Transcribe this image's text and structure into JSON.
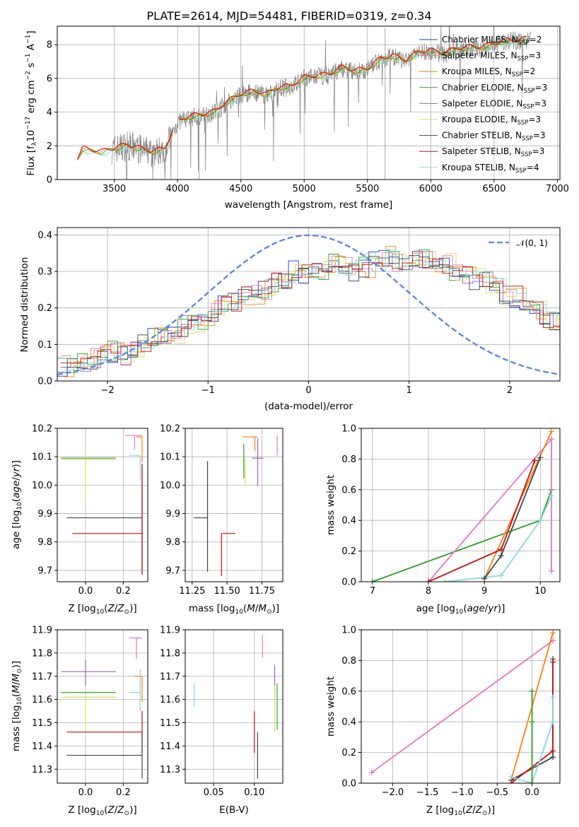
{
  "figure": {
    "title": "PLATE=2614, MJD=54481, FIBERID=0319, z=0.34"
  },
  "colors": {
    "Chabrier MILES": "#1f3fb4",
    "Salpeter MILES": "#e377c2",
    "Kroupa MILES": "#ff7f0e",
    "Chabrier ELODIE": "#2ca02c",
    "Salpeter ELODIE": "#9467bd",
    "Kroupa ELODIE": "#dbdb5a",
    "Chabrier STELIB": "#444444",
    "Salpeter STELIB": "#c41010",
    "Kroupa STELIB": "#8ad8e0",
    "spectrum": "#808080",
    "normal": "#5b84d9",
    "grid": "#b0b0b0"
  },
  "chart_data": [
    {
      "type": "line",
      "panel": "spectrum",
      "xlabel": "wavelength [Angstrom, rest frame]",
      "ylabel": "Flux [f_λ 10^-17 erg cm^-2 s^-1 A^-1]",
      "xlim": [
        3050,
        7020
      ],
      "ylim": [
        0,
        9.1
      ],
      "xticks": [
        3500,
        4000,
        4500,
        5000,
        5500,
        6000,
        6500,
        7000
      ],
      "yticks": [
        0,
        2,
        4,
        6,
        8
      ],
      "grid": true,
      "legend_position": "top-right",
      "legend": [
        {
          "label": "Chabrier MILES, N",
          "sub": "SSP",
          "suffix": "=2",
          "key": "Chabrier MILES"
        },
        {
          "label": "Salpeter MILES, N",
          "sub": "SSP",
          "suffix": "=3",
          "key": "Salpeter MILES"
        },
        {
          "label": "Kroupa MILES, N",
          "sub": "SSP",
          "suffix": "=2",
          "key": "Kroupa MILES"
        },
        {
          "label": "Chabrier ELODIE, N",
          "sub": "SSP",
          "suffix": "=3",
          "key": "Chabrier ELODIE"
        },
        {
          "label": "Salpeter ELODIE, N",
          "sub": "SSP",
          "suffix": "=3",
          "key": "Salpeter ELODIE"
        },
        {
          "label": "Kroupa ELODIE, N",
          "sub": "SSP",
          "suffix": "=3",
          "key": "Kroupa ELODIE"
        },
        {
          "label": "Chabrier STELIB, N",
          "sub": "SSP",
          "suffix": "=3",
          "key": "Chabrier STELIB"
        },
        {
          "label": "Salpeter STELIB, N",
          "sub": "SSP",
          "suffix": "=3",
          "key": "Salpeter STELIB"
        },
        {
          "label": "Kroupa STELIB, N",
          "sub": "SSP",
          "suffix": "=4",
          "key": "Kroupa STELIB"
        }
      ],
      "model_continuum": [
        [
          3210,
          1.2
        ],
        [
          3250,
          1.8
        ],
        [
          3300,
          1.7
        ],
        [
          3400,
          1.6
        ],
        [
          3500,
          1.8
        ],
        [
          3600,
          2.0
        ],
        [
          3700,
          1.8
        ],
        [
          3800,
          1.6
        ],
        [
          3900,
          1.8
        ],
        [
          4000,
          3.4
        ],
        [
          4100,
          3.7
        ],
        [
          4200,
          3.8
        ],
        [
          4300,
          4.0
        ],
        [
          4400,
          4.6
        ],
        [
          4500,
          5.0
        ],
        [
          4600,
          5.2
        ],
        [
          4700,
          5.0
        ],
        [
          4800,
          5.4
        ],
        [
          4900,
          5.5
        ],
        [
          5000,
          6.0
        ],
        [
          5100,
          6.1
        ],
        [
          5200,
          6.2
        ],
        [
          5300,
          6.6
        ],
        [
          5400,
          6.4
        ],
        [
          5500,
          6.5
        ],
        [
          5600,
          7.1
        ],
        [
          5700,
          7.3
        ],
        [
          5800,
          7.0
        ],
        [
          5900,
          7.5
        ],
        [
          6000,
          7.6
        ],
        [
          6100,
          7.4
        ],
        [
          6200,
          7.7
        ],
        [
          6300,
          7.8
        ],
        [
          6400,
          7.8
        ],
        [
          6500,
          8.0
        ],
        [
          6600,
          8.2
        ],
        [
          6700,
          8.2
        ],
        [
          6750,
          8.3
        ]
      ],
      "observed_range": [
        3480,
        6790
      ]
    },
    {
      "type": "line",
      "panel": "residual distribution",
      "xlabel": "(data-model)/error",
      "ylabel": "Normed distribution",
      "xlim": [
        -2.5,
        2.5
      ],
      "ylim": [
        0,
        0.42
      ],
      "xticks": [
        -2,
        -1,
        0,
        1,
        2
      ],
      "yticks": [
        0.0,
        0.1,
        0.2,
        0.3,
        0.4
      ],
      "grid": true,
      "legend_position": "top-right",
      "legend": [
        {
          "label": "𝒩(0, 1)",
          "key": "normal"
        }
      ],
      "series": [
        {
          "name": "Chabrier MILES",
          "x_start": -2.5,
          "bin": 0.1,
          "values": [
            0.04,
            0.04,
            0.05,
            0.06,
            0.07,
            0.08,
            0.07,
            0.09,
            0.1,
            0.12,
            0.13,
            0.12,
            0.15,
            0.16,
            0.17,
            0.19,
            0.21,
            0.22,
            0.23,
            0.24,
            0.25,
            0.27,
            0.28,
            0.3,
            0.29,
            0.31,
            0.3,
            0.32,
            0.31,
            0.3,
            0.31,
            0.33,
            0.34,
            0.33,
            0.32,
            0.34,
            0.33,
            0.31,
            0.32,
            0.3,
            0.29,
            0.28,
            0.27,
            0.26,
            0.24,
            0.23,
            0.21,
            0.19,
            0.17,
            0.16
          ]
        },
        {
          "name": "Kroupa STELIB",
          "x_start": -2.5,
          "bin": 0.1,
          "values": [
            0.03,
            0.04,
            0.05,
            0.05,
            0.06,
            0.07,
            0.08,
            0.09,
            0.09,
            0.11,
            0.12,
            0.13,
            0.14,
            0.16,
            0.18,
            0.19,
            0.2,
            0.21,
            0.23,
            0.24,
            0.25,
            0.27,
            0.27,
            0.29,
            0.3,
            0.28,
            0.31,
            0.3,
            0.29,
            0.33,
            0.35,
            0.3,
            0.36,
            0.31,
            0.34,
            0.36,
            0.32,
            0.33,
            0.3,
            0.31,
            0.29,
            0.3,
            0.27,
            0.28,
            0.25,
            0.24,
            0.22,
            0.21,
            0.19,
            0.18
          ]
        }
      ]
    },
    {
      "type": "scatter",
      "panel": "age vs Z",
      "xlabel": "Z [log10(Z/Z⊙)]",
      "ylabel": "age [log10(age/yr)]",
      "xlim": [
        -0.15,
        0.33
      ],
      "ylim": [
        9.66,
        10.2
      ],
      "xticks": [
        0.0,
        0.2
      ],
      "yticks": [
        9.7,
        9.8,
        9.9,
        10.0,
        10.1,
        10.2
      ],
      "points": [
        {
          "key": "Kroupa ELODIE",
          "x": 0.0,
          "y": 10.09,
          "xerr": [
            0.13,
            0.16
          ],
          "yerr": [
            0.14,
            0.03
          ]
        },
        {
          "key": "Chabrier ELODIE",
          "x": 0.0,
          "y": 10.095,
          "xerr": [
            0.13,
            0.16
          ],
          "yerr": [
            0.0,
            0.0
          ]
        },
        {
          "key": "Salpeter MILES",
          "x": 0.26,
          "y": 10.175,
          "xerr": [
            0.05,
            0.04
          ],
          "yerr": [
            0.05,
            0.0
          ]
        },
        {
          "key": "Kroupa MILES",
          "x": 0.3,
          "y": 10.17,
          "xerr": [
            0.03,
            0.0
          ],
          "yerr": [
            0.09,
            0.0
          ]
        },
        {
          "key": "Kroupa STELIB",
          "x": 0.29,
          "y": 10.105,
          "xerr": [
            0.06,
            0.0
          ],
          "yerr": [
            0.09,
            0.0
          ]
        },
        {
          "key": "Chabrier STELIB",
          "x": 0.3,
          "y": 9.885,
          "xerr": [
            0.4,
            0.0
          ],
          "yerr": [
            0.2,
            0.19
          ]
        },
        {
          "key": "Salpeter STELIB",
          "x": 0.3,
          "y": 9.83,
          "xerr": [
            0.37,
            0.0
          ],
          "yerr": [
            0.14,
            0.24
          ]
        }
      ]
    },
    {
      "type": "scatter",
      "panel": "age vs mass",
      "xlabel": "mass [log10(M/M⊙)]",
      "ylabel": "",
      "xlim": [
        11.2,
        11.9
      ],
      "ylim": [
        9.66,
        10.2
      ],
      "xticks": [
        11.25,
        11.5,
        11.75
      ],
      "yticks": [
        9.7,
        9.8,
        9.9,
        10.0,
        10.1,
        10.2
      ],
      "points": [
        {
          "key": "Kroupa ELODIE",
          "x": 11.63,
          "y": 10.095,
          "xerr": [
            0.0,
            0.0
          ],
          "yerr": [
            0.1,
            0.0
          ]
        },
        {
          "key": "Chabrier ELODIE",
          "x": 11.62,
          "y": 10.095,
          "xerr": [
            0.0,
            0.0
          ],
          "yerr": [
            0.07,
            0.05
          ]
        },
        {
          "key": "Salpeter ELODIE",
          "x": 11.72,
          "y": 10.095,
          "xerr": [
            0.04,
            0.04
          ],
          "yerr": [
            0.1,
            0.07
          ]
        },
        {
          "key": "Kroupa MILES",
          "x": 11.7,
          "y": 10.17,
          "xerr": [
            0.09,
            0.02
          ],
          "yerr": [
            0.05,
            0.0
          ]
        },
        {
          "key": "Salpeter MILES",
          "x": 11.86,
          "y": 10.175,
          "xerr": [
            0.0,
            0.0
          ],
          "yerr": [
            0.07,
            0.0
          ]
        },
        {
          "key": "Chabrier STELIB",
          "x": 11.36,
          "y": 9.885,
          "xerr": [
            0.1,
            0.0
          ],
          "yerr": [
            0.19,
            0.2
          ]
        },
        {
          "key": "Salpeter STELIB",
          "x": 11.46,
          "y": 9.83,
          "xerr": [
            0.0,
            0.1
          ],
          "yerr": [
            0.15,
            0.0
          ]
        }
      ]
    },
    {
      "type": "line",
      "panel": "mass weight vs age",
      "xlabel": "age [log10(age/yr)]",
      "ylabel": "mass weight",
      "xlim": [
        6.8,
        10.35
      ],
      "ylim": [
        0,
        1.0
      ],
      "xticks": [
        7,
        8,
        9,
        10
      ],
      "yticks": [
        0.0,
        0.2,
        0.4,
        0.6,
        0.8,
        1.0
      ],
      "series": [
        {
          "name": "Kroupa ELODIE",
          "x": [
            7.0,
            10.0,
            10.2
          ],
          "y": [
            0.0,
            0.4,
            0.6
          ]
        },
        {
          "name": "Chabrier ELODIE",
          "x": [
            7.0,
            10.0,
            10.2
          ],
          "y": [
            0.0,
            0.4,
            0.6
          ]
        },
        {
          "name": "Salpeter MILES",
          "x": [
            8.0,
            10.2,
            10.2
          ],
          "y": [
            0.0,
            0.93,
            0.07
          ]
        },
        {
          "name": "Kroupa MILES",
          "x": [
            9.0,
            10.2
          ],
          "y": [
            0.02,
            0.98
          ]
        },
        {
          "name": "Kroupa STELIB",
          "x": [
            8.3,
            9.3,
            10.0,
            10.2
          ],
          "y": [
            0.0,
            0.04,
            0.4,
            0.56
          ]
        },
        {
          "name": "Chabrier STELIB",
          "x": [
            9.0,
            9.3,
            10.0
          ],
          "y": [
            0.02,
            0.17,
            0.81
          ]
        },
        {
          "name": "Salpeter STELIB",
          "x": [
            8.0,
            9.3,
            9.9
          ],
          "y": [
            0.0,
            0.21,
            0.79
          ]
        }
      ]
    },
    {
      "type": "scatter",
      "panel": "mass vs Z",
      "xlabel": "Z [log10(Z/Z⊙)]",
      "ylabel": "mass [log10(M/M⊙)]",
      "xlim": [
        -0.15,
        0.33
      ],
      "ylim": [
        11.24,
        11.9
      ],
      "xticks": [
        0.0,
        0.2
      ],
      "yticks": [
        11.3,
        11.4,
        11.5,
        11.6,
        11.7,
        11.8,
        11.9
      ],
      "points": [
        {
          "key": "Salpeter ELODIE",
          "x": 0.0,
          "y": 11.72,
          "xerr": [
            0.13,
            0.16
          ],
          "yerr": [
            0.06,
            0.05
          ]
        },
        {
          "key": "Chabrier ELODIE",
          "x": 0.0,
          "y": 11.63,
          "xerr": [
            0.13,
            0.16
          ],
          "yerr": [
            0.0,
            0.0
          ]
        },
        {
          "key": "Kroupa ELODIE",
          "x": 0.0,
          "y": 11.61,
          "xerr": [
            0.13,
            0.16
          ],
          "yerr": [
            0.15,
            0.0
          ]
        },
        {
          "key": "Salpeter MILES",
          "x": 0.27,
          "y": 11.865,
          "xerr": [
            0.04,
            0.03
          ],
          "yerr": [
            0.09,
            0.0
          ]
        },
        {
          "key": "Kroupa MILES",
          "x": 0.3,
          "y": 11.7,
          "xerr": [
            0.04,
            0.0
          ],
          "yerr": [
            0.11,
            0.0
          ]
        },
        {
          "key": "Kroupa STELIB",
          "x": 0.29,
          "y": 11.63,
          "xerr": [
            0.06,
            0.0
          ],
          "yerr": [
            0.08,
            0.1
          ]
        },
        {
          "key": "Salpeter STELIB",
          "x": 0.3,
          "y": 11.46,
          "xerr": [
            0.4,
            0.0
          ],
          "yerr": [
            0.09,
            0.09
          ]
        },
        {
          "key": "Chabrier STELIB",
          "x": 0.3,
          "y": 11.36,
          "xerr": [
            0.4,
            0.0
          ],
          "yerr": [
            0.1,
            0.1
          ]
        }
      ]
    },
    {
      "type": "scatter",
      "panel": "mass vs E(B-V)",
      "xlabel": "E(B-V)",
      "ylabel": "",
      "xlim": [
        0.015,
        0.135
      ],
      "ylim": [
        11.24,
        11.9
      ],
      "xticks": [
        0.05,
        0.1
      ],
      "yticks": [
        11.3,
        11.4,
        11.5,
        11.6,
        11.7,
        11.8,
        11.9
      ],
      "points": [
        {
          "key": "Kroupa STELIB",
          "x": 0.026,
          "y": 11.62,
          "xerr": [
            0,
            0
          ],
          "yerr": [
            0.05,
            0.05
          ]
        },
        {
          "key": "Salpeter MILES",
          "x": 0.11,
          "y": 11.83,
          "xerr": [
            0,
            0
          ],
          "yerr": [
            0.05,
            0.05
          ]
        },
        {
          "key": "Salpeter ELODIE",
          "x": 0.125,
          "y": 11.7,
          "xerr": [
            0,
            0
          ],
          "yerr": [
            0.07,
            0.05
          ]
        },
        {
          "key": "Kroupa ELODIE",
          "x": 0.125,
          "y": 11.55,
          "xerr": [
            0,
            0
          ],
          "yerr": [
            0.09,
            0.11
          ]
        },
        {
          "key": "Chabrier ELODIE",
          "x": 0.128,
          "y": 11.57,
          "xerr": [
            0,
            0
          ],
          "yerr": [
            0.1,
            0.1
          ]
        },
        {
          "key": "Salpeter STELIB",
          "x": 0.1,
          "y": 11.46,
          "xerr": [
            0,
            0
          ],
          "yerr": [
            0.09,
            0.09
          ]
        },
        {
          "key": "Chabrier STELIB",
          "x": 0.104,
          "y": 11.36,
          "xerr": [
            0,
            0
          ],
          "yerr": [
            0.1,
            0.1
          ]
        }
      ]
    },
    {
      "type": "line",
      "panel": "mass weight vs Z",
      "xlabel": "Z [log10(Z/Z⊙)]",
      "ylabel": "mass weight",
      "xlim": [
        -2.45,
        0.4
      ],
      "ylim": [
        0,
        1.0
      ],
      "xticks": [
        -2.0,
        -1.5,
        -1.0,
        -0.5,
        0.0
      ],
      "yticks": [
        0.0,
        0.2,
        0.4,
        0.6,
        0.8,
        1.0
      ],
      "series": [
        {
          "name": "Salpeter MILES",
          "x": [
            -2.3,
            0.3
          ],
          "y": [
            0.07,
            0.93
          ]
        },
        {
          "name": "Kroupa MILES",
          "x": [
            -0.3,
            0.3
          ],
          "y": [
            0.02,
            0.98
          ]
        },
        {
          "name": "Chabrier STELIB",
          "x": [
            -0.3,
            0.3,
            0.3
          ],
          "y": [
            0.02,
            0.17,
            0.81
          ]
        },
        {
          "name": "Salpeter STELIB",
          "x": [
            -0.3,
            0.3,
            0.3
          ],
          "y": [
            0.0,
            0.21,
            0.79
          ]
        },
        {
          "name": "Kroupa STELIB",
          "x": [
            -0.3,
            0.0,
            0.3,
            0.3
          ],
          "y": [
            0.04,
            0.0,
            0.4,
            0.56
          ]
        },
        {
          "name": "Kroupa ELODIE",
          "x": [
            0.0,
            0.0,
            0.0
          ],
          "y": [
            0.0,
            0.4,
            0.6
          ]
        },
        {
          "name": "Chabrier ELODIE",
          "x": [
            0.0,
            0.0,
            0.0
          ],
          "y": [
            0.0,
            0.4,
            0.6
          ]
        }
      ]
    }
  ]
}
